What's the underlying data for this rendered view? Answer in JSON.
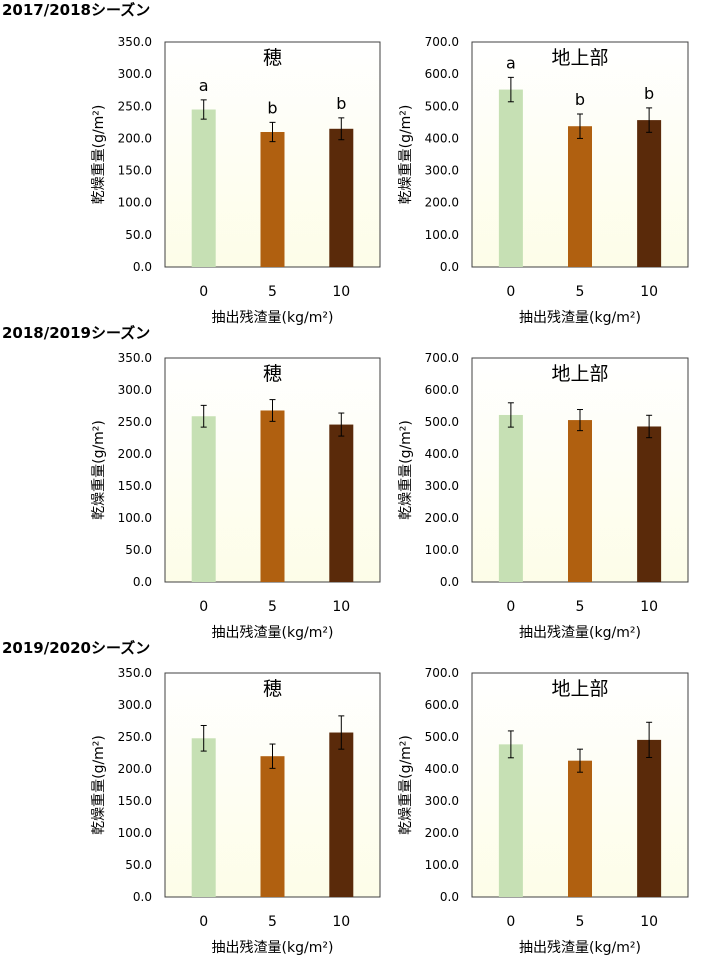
{
  "colors": {
    "0": "#c6e0b4",
    "5": "#b06010",
    "10": "#5a2a0a",
    "plot_bg_top": "#ffffff",
    "plot_bg_bottom": "#fdfde8"
  },
  "seasons": [
    {
      "label": "2017/2018シーズン"
    },
    {
      "label": "2018/2019シーズン"
    },
    {
      "label": "2019/2020シーズン"
    }
  ],
  "chart_data": [
    {
      "type": "bar",
      "title": "穂",
      "season": "2017/2018シーズン",
      "categories": [
        "0",
        "5",
        "10"
      ],
      "values": [
        245,
        210,
        215
      ],
      "errors": [
        15,
        15,
        17
      ],
      "letters": [
        "a",
        "b",
        "b"
      ],
      "ylim": [
        0,
        350
      ],
      "yticks": [
        "0.0",
        "50.0",
        "100.0",
        "150.0",
        "200.0",
        "250.0",
        "300.0",
        "350.0"
      ],
      "xlabel": "抽出残渣量(kg/m²)",
      "ylabel": "乾燥重量(g/m²)"
    },
    {
      "type": "bar",
      "title": "地上部",
      "season": "2017/2018シーズン",
      "categories": [
        "0",
        "5",
        "10"
      ],
      "values": [
        552,
        438,
        457
      ],
      "errors": [
        38,
        38,
        38
      ],
      "letters": [
        "a",
        "b",
        "b"
      ],
      "ylim": [
        0,
        700
      ],
      "yticks": [
        "0.0",
        "100.0",
        "200.0",
        "300.0",
        "400.0",
        "500.0",
        "600.0",
        "700.0"
      ],
      "xlabel": "抽出残渣量(kg/m²)",
      "ylabel": "乾燥重量(g/m²)"
    },
    {
      "type": "bar",
      "title": "穂",
      "season": "2018/2019シーズン",
      "categories": [
        "0",
        "5",
        "10"
      ],
      "values": [
        259,
        268,
        246
      ],
      "errors": [
        17,
        17,
        18
      ],
      "letters": [
        "",
        "",
        ""
      ],
      "ylim": [
        0,
        350
      ],
      "yticks": [
        "0.0",
        "50.0",
        "100.0",
        "150.0",
        "200.0",
        "250.0",
        "300.0",
        "350.0"
      ],
      "xlabel": "抽出残渣量(kg/m²)",
      "ylabel": "乾燥重量(g/m²)"
    },
    {
      "type": "bar",
      "title": "地上部",
      "season": "2018/2019シーズン",
      "categories": [
        "0",
        "5",
        "10"
      ],
      "values": [
        522,
        506,
        486
      ],
      "errors": [
        38,
        33,
        35
      ],
      "letters": [
        "",
        "",
        ""
      ],
      "ylim": [
        0,
        700
      ],
      "yticks": [
        "0.0",
        "100.0",
        "200.0",
        "300.0",
        "400.0",
        "500.0",
        "600.0",
        "700.0"
      ],
      "xlabel": "抽出残渣量(kg/m²)",
      "ylabel": "乾燥重量(g/m²)"
    },
    {
      "type": "bar",
      "title": "穂",
      "season": "2019/2020シーズン",
      "categories": [
        "0",
        "5",
        "10"
      ],
      "values": [
        248,
        220,
        257
      ],
      "errors": [
        20,
        19,
        26
      ],
      "letters": [
        "",
        "",
        ""
      ],
      "ylim": [
        0,
        350
      ],
      "yticks": [
        "0.0",
        "50.0",
        "100.0",
        "150.0",
        "200.0",
        "250.0",
        "300.0",
        "350.0"
      ],
      "xlabel": "抽出残渣量(kg/m²)",
      "ylabel": "乾燥重量(g/m²)"
    },
    {
      "type": "bar",
      "title": "地上部",
      "season": "2019/2020シーズン",
      "categories": [
        "0",
        "5",
        "10"
      ],
      "values": [
        477,
        426,
        491
      ],
      "errors": [
        42,
        36,
        55
      ],
      "letters": [
        "",
        "",
        ""
      ],
      "ylim": [
        0,
        700
      ],
      "yticks": [
        "0.0",
        "100.0",
        "200.0",
        "300.0",
        "400.0",
        "500.0",
        "600.0",
        "700.0"
      ],
      "xlabel": "抽出残渣量(kg/m²)",
      "ylabel": "乾燥重量(g/m²)"
    }
  ]
}
